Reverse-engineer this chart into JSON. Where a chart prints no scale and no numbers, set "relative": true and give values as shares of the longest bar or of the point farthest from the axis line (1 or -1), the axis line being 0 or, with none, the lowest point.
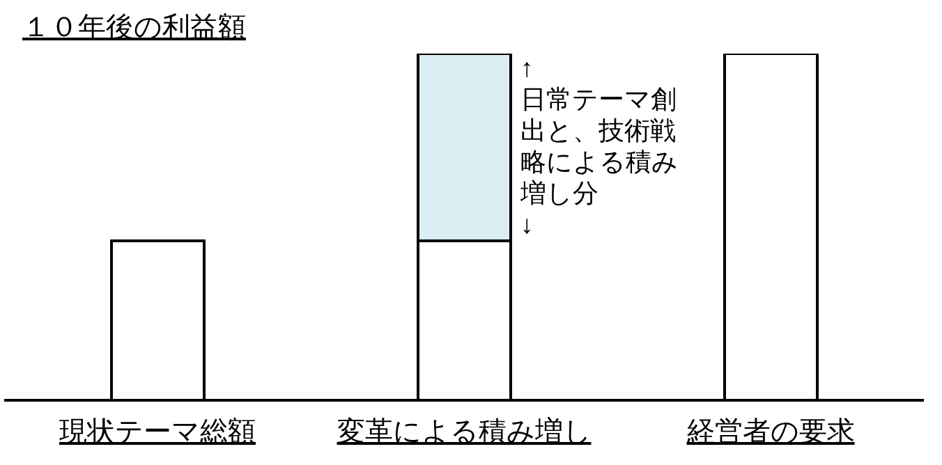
{
  "chart_data": {
    "type": "bar",
    "title": "１０年後の利益額",
    "categories": [
      "現状テーマ総額",
      "変革による積み増し",
      "経営者の要求"
    ],
    "series": [
      {
        "color": "#ffffff",
        "values": [
          0.46,
          0.46,
          1
        ]
      },
      {
        "color": "#dbeef3",
        "values": [
          null,
          0.54,
          null
        ]
      }
    ],
    "stacked": true,
    "relative": true,
    "annotations": [
      "↑",
      "日常テーマ創出と、技術戦略による積み増し分",
      "↓"
    ]
  }
}
